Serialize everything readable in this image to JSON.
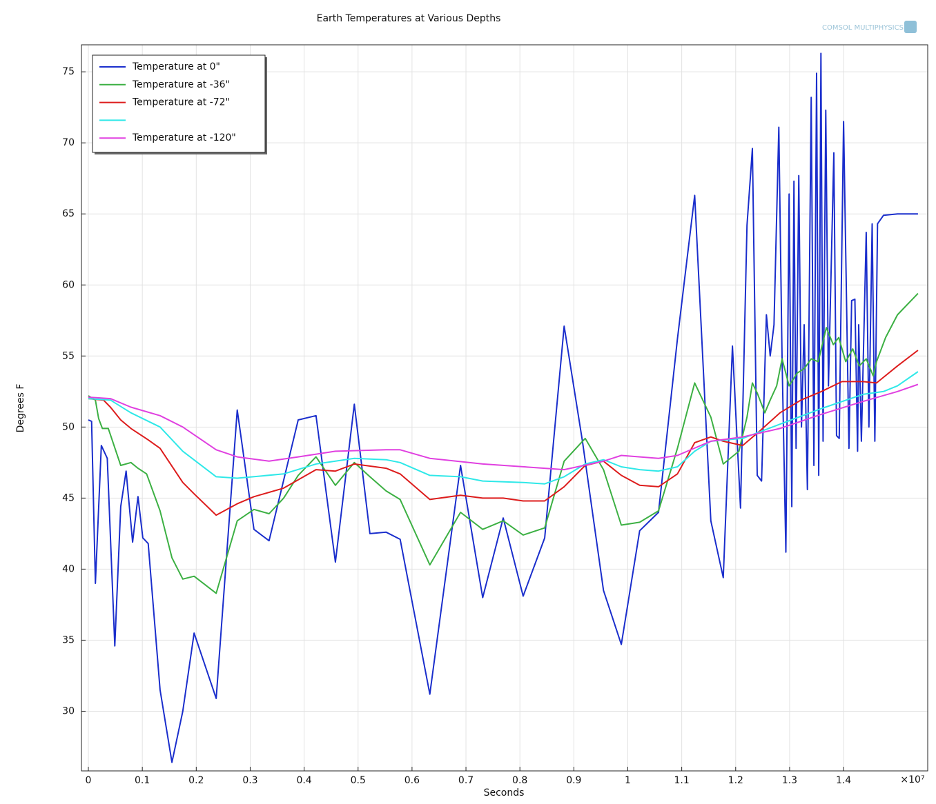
{
  "chart_data": {
    "type": "line",
    "title": "Earth Temperatures at Various Depths",
    "xlabel": "Seconds",
    "ylabel": "Degrees F",
    "x_multiplier_label": "×10⁷",
    "logo_text": "COMSOL MULTIPHYSICS",
    "xlim": [
      -0.0128,
      1.556
    ],
    "ylim": [
      25.8,
      76.9
    ],
    "xticks": [
      0,
      0.1,
      0.2,
      0.3,
      0.4,
      0.5,
      0.6,
      0.7,
      0.8,
      0.9,
      1,
      1.1,
      1.2,
      1.3,
      1.4
    ],
    "yticks": [
      30,
      35,
      40,
      45,
      50,
      55,
      60,
      65,
      70,
      75
    ],
    "grid": true,
    "legend": "upper left",
    "series": [
      {
        "name": "Temperature at 0\"",
        "color": "#1a2ecc",
        "x": [
          0,
          0.006,
          0.013,
          0.024,
          0.035,
          0.049,
          0.06,
          0.07,
          0.082,
          0.092,
          0.101,
          0.111,
          0.133,
          0.155,
          0.175,
          0.196,
          0.237,
          0.276,
          0.307,
          0.335,
          0.389,
          0.422,
          0.458,
          0.493,
          0.522,
          0.552,
          0.578,
          0.633,
          0.69,
          0.731,
          0.769,
          0.806,
          0.846,
          0.882,
          0.916,
          0.955,
          0.988,
          1.022,
          1.057,
          1.092,
          1.124,
          1.154,
          1.177,
          1.194,
          1.209,
          1.221,
          1.231,
          1.24,
          1.248,
          1.257,
          1.264,
          1.271,
          1.28,
          1.286,
          1.293,
          1.299,
          1.304,
          1.308,
          1.312,
          1.317,
          1.322,
          1.327,
          1.333,
          1.34,
          1.345,
          1.35,
          1.354,
          1.358,
          1.362,
          1.367,
          1.372,
          1.382,
          1.387,
          1.392,
          1.4,
          1.41,
          1.415,
          1.421,
          1.426,
          1.428,
          1.433,
          1.442,
          1.447,
          1.453,
          1.458,
          1.463,
          1.474,
          1.5,
          1.538
        ],
        "values": [
          50.5,
          50.4,
          39.0,
          48.7,
          47.8,
          34.6,
          44.4,
          46.9,
          41.9,
          45.1,
          42.2,
          41.8,
          31.5,
          26.4,
          30.0,
          35.5,
          30.9,
          51.2,
          42.8,
          42.0,
          50.5,
          50.8,
          40.5,
          51.6,
          42.5,
          42.6,
          42.1,
          31.2,
          47.3,
          38.0,
          43.6,
          38.1,
          42.2,
          57.1,
          49.0,
          38.5,
          34.7,
          42.7,
          44.0,
          56.2,
          66.3,
          43.4,
          39.4,
          55.7,
          44.3,
          64.2,
          69.6,
          46.6,
          46.2,
          57.9,
          55.0,
          57.2,
          71.1,
          54.8,
          41.2,
          66.4,
          44.4,
          67.3,
          48.5,
          67.7,
          50.0,
          57.2,
          45.6,
          73.2,
          47.3,
          74.9,
          46.6,
          76.3,
          49.0,
          72.3,
          52.9,
          69.3,
          49.4,
          49.2,
          71.5,
          48.5,
          58.9,
          59.0,
          48.3,
          57.2,
          49.0,
          63.7,
          50.0,
          64.3,
          49.0,
          64.3,
          64.9,
          65.0,
          65.0
        ]
      },
      {
        "name": "Temperature at -36\"",
        "color": "#3cb043",
        "x": [
          0,
          0.013,
          0.019,
          0.026,
          0.037,
          0.06,
          0.079,
          0.092,
          0.108,
          0.133,
          0.155,
          0.175,
          0.196,
          0.237,
          0.276,
          0.307,
          0.335,
          0.362,
          0.389,
          0.422,
          0.458,
          0.493,
          0.522,
          0.552,
          0.578,
          0.633,
          0.69,
          0.731,
          0.769,
          0.806,
          0.846,
          0.882,
          0.921,
          0.955,
          0.988,
          1.022,
          1.057,
          1.092,
          1.124,
          1.154,
          1.177,
          1.206,
          1.221,
          1.231,
          1.24,
          1.254,
          1.264,
          1.276,
          1.286,
          1.299,
          1.314,
          1.327,
          1.34,
          1.353,
          1.368,
          1.381,
          1.391,
          1.404,
          1.417,
          1.429,
          1.442,
          1.455,
          1.461,
          1.478,
          1.5,
          1.538
        ],
        "values": [
          52.2,
          51.9,
          50.6,
          49.9,
          49.9,
          47.3,
          47.5,
          47.1,
          46.7,
          44.1,
          40.8,
          39.3,
          39.5,
          38.3,
          43.4,
          44.2,
          43.9,
          45.0,
          46.6,
          47.9,
          45.9,
          47.5,
          46.5,
          45.5,
          44.9,
          40.3,
          44.0,
          42.8,
          43.4,
          42.4,
          42.9,
          47.6,
          49.2,
          47.0,
          43.1,
          43.3,
          44.1,
          48.5,
          53.1,
          50.7,
          47.4,
          48.3,
          50.7,
          53.1,
          52.4,
          51.0,
          51.9,
          52.9,
          54.8,
          52.9,
          53.8,
          54.1,
          54.8,
          54.6,
          57.0,
          55.8,
          56.3,
          54.6,
          55.5,
          54.3,
          54.8,
          53.6,
          54.6,
          56.3,
          57.9,
          59.4
        ]
      },
      {
        "name": "Temperature at -72\"",
        "color": "#dd1c1c",
        "x": [
          0,
          0.028,
          0.041,
          0.06,
          0.079,
          0.111,
          0.133,
          0.175,
          0.196,
          0.237,
          0.276,
          0.307,
          0.362,
          0.422,
          0.458,
          0.493,
          0.552,
          0.578,
          0.633,
          0.69,
          0.731,
          0.769,
          0.806,
          0.846,
          0.882,
          0.921,
          0.955,
          0.988,
          1.022,
          1.057,
          1.092,
          1.124,
          1.154,
          1.177,
          1.213,
          1.244,
          1.282,
          1.321,
          1.359,
          1.397,
          1.436,
          1.461,
          1.5,
          1.538
        ],
        "values": [
          52.0,
          51.9,
          51.4,
          50.5,
          49.9,
          49.1,
          48.5,
          46.1,
          45.3,
          43.8,
          44.6,
          45.1,
          45.7,
          47.0,
          46.9,
          47.4,
          47.1,
          46.7,
          44.9,
          45.2,
          45.0,
          45.0,
          44.8,
          44.8,
          45.8,
          47.3,
          47.6,
          46.6,
          45.9,
          45.8,
          46.7,
          48.9,
          49.3,
          49.0,
          48.7,
          49.7,
          51.0,
          51.9,
          52.5,
          53.2,
          53.2,
          53.1,
          54.3,
          55.4
        ]
      },
      {
        "color": "#2ee8e8",
        "x": [
          0,
          0.041,
          0.079,
          0.133,
          0.175,
          0.237,
          0.276,
          0.362,
          0.422,
          0.493,
          0.552,
          0.578,
          0.633,
          0.69,
          0.731,
          0.806,
          0.846,
          0.882,
          0.921,
          0.955,
          0.988,
          1.022,
          1.057,
          1.092,
          1.124,
          1.154,
          1.213,
          1.282,
          1.359,
          1.436,
          1.474,
          1.5,
          1.538
        ],
        "values": [
          52.0,
          51.9,
          51.0,
          50.0,
          48.3,
          46.5,
          46.4,
          46.7,
          47.4,
          47.8,
          47.7,
          47.5,
          46.6,
          46.5,
          46.2,
          46.1,
          46.0,
          46.5,
          47.4,
          47.7,
          47.2,
          47.0,
          46.9,
          47.2,
          48.3,
          49.0,
          49.2,
          50.2,
          51.3,
          52.3,
          52.5,
          52.9,
          53.9
        ]
      },
      {
        "name": "Temperature at -120\"",
        "color": "#e040e0",
        "x": [
          0,
          0.041,
          0.079,
          0.133,
          0.175,
          0.237,
          0.276,
          0.335,
          0.389,
          0.458,
          0.552,
          0.578,
          0.633,
          0.731,
          0.846,
          0.882,
          0.955,
          0.988,
          1.057,
          1.092,
          1.154,
          1.213,
          1.282,
          1.359,
          1.436,
          1.5,
          1.538
        ],
        "values": [
          52.1,
          52.0,
          51.4,
          50.8,
          50.0,
          48.4,
          47.9,
          47.6,
          47.9,
          48.3,
          48.4,
          48.4,
          47.8,
          47.4,
          47.1,
          47.0,
          47.6,
          48.0,
          47.8,
          48.0,
          49.0,
          49.3,
          49.9,
          50.9,
          51.8,
          52.5,
          53.0
        ]
      }
    ]
  }
}
